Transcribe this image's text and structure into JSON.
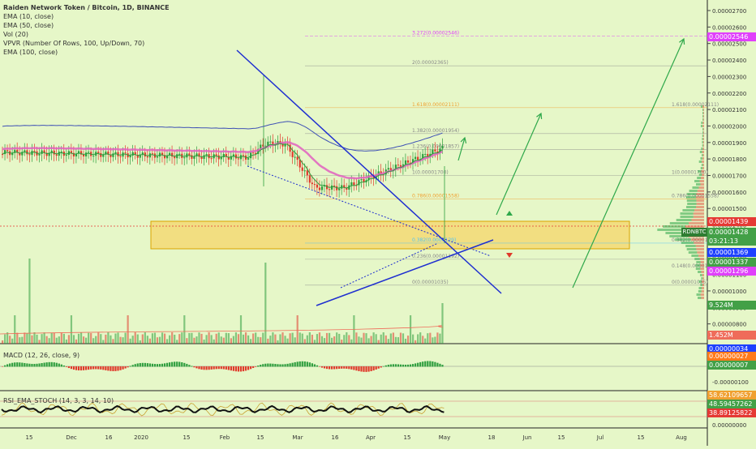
{
  "header": {
    "title": "Raiden Network Token / Bitcoin, 1D, BINANCE",
    "indicators": [
      "EMA (10, close)",
      "EMA (50, close)",
      "Vol (20)",
      "VPVR (Number Of Rows, 100, Up/Down, 70)",
      "EMA (100, close)"
    ]
  },
  "price_axis": {
    "labels": [
      "0.00002700",
      "0.00002600",
      "0.00002500",
      "0.00002400",
      "0.00002300",
      "0.00002200",
      "0.00002100",
      "0.00002000",
      "0.00001900",
      "0.00001800",
      "0.00001700",
      "0.00001600",
      "0.00001500",
      "0.00001400",
      "0.00001300",
      "0.00001200",
      "0.00001100",
      "0.00001000",
      "0.00000900",
      "0.00000800"
    ],
    "tags": [
      {
        "text": "0.00002546",
        "color": "#e040fb"
      },
      {
        "text": "0.00001439",
        "color": "#e53935"
      },
      {
        "text": "0.00001428",
        "color": "#43a047"
      },
      {
        "text": "03:21:13",
        "color": "#43a047"
      },
      {
        "text": "0.00001369",
        "color": "#1e40ff"
      },
      {
        "text": "0.00001337",
        "color": "#43a047"
      },
      {
        "text": "0.00001296",
        "color": "#e040fb"
      },
      {
        "text": "9.524M",
        "color": "#43a047"
      },
      {
        "text": "1.452M",
        "color": "#ef6c5a"
      }
    ],
    "symbol_tag": "RDNBTC"
  },
  "fib_levels": [
    {
      "label": "3.272(0.00002546)",
      "color": "#e040fb"
    },
    {
      "label": "2(0.00002365)",
      "color": "#888888"
    },
    {
      "label": "1.618(0.00002111)",
      "color": "#f0a030"
    },
    {
      "label": "1.382(0.00001954)",
      "color": "#888888"
    },
    {
      "label": "1.236(0.00001857)",
      "color": "#888888"
    },
    {
      "label": "1(0.00001700)",
      "color": "#888888"
    },
    {
      "label": "0.786(0.00001558)",
      "color": "#f0a030"
    },
    {
      "label": "0.382(0.0000129)",
      "color": "#4fc3f7"
    },
    {
      "label": "0.236(0.00001192)",
      "color": "#888888"
    },
    {
      "label": "0(0.00001035)",
      "color": "#888888"
    }
  ],
  "fib_right_labels": [
    "1.618(0.00002111)",
    "1(0.00001700)",
    "0.786(0.00001558)",
    "0.382(0.0000129)",
    "0.148(0.00001133)",
    "0(0.00001035)"
  ],
  "time_axis": [
    "15",
    "Dec",
    "16",
    "2020",
    "15",
    "Feb",
    "15",
    "Mar",
    "16",
    "Apr",
    "15",
    "May",
    "18",
    "Jun",
    "15",
    "Jul",
    "15",
    "Aug"
  ],
  "macd": {
    "title": "MACD (12, 26, close, 9)",
    "labels": [
      "0.00000034",
      "0.00000027",
      "0.00000007",
      "-0.00000100"
    ],
    "tag_colors": [
      "#1e40ff",
      "#ff7a1a",
      "#43a047"
    ]
  },
  "rsi": {
    "title": "RSI_EMA_STOCH (14, 3, 3, 14, 10)",
    "labels": [
      "58.62109657",
      "48.59457262",
      "38.89125822",
      "0.00000000"
    ],
    "tag_colors": [
      "#f0a030",
      "#43a047",
      "#e53935"
    ]
  },
  "colors": {
    "background": "#e6f7c8",
    "candle_up": "#2e9e3e",
    "candle_down": "#e0392b",
    "ema_slow": "#3f51b5",
    "ema_mid": "#e060c0",
    "ema_fast": "#2e9e3e",
    "trendline": "#1f2fd0",
    "projection": "#2ea84a",
    "zone": "#f6d56a"
  }
}
